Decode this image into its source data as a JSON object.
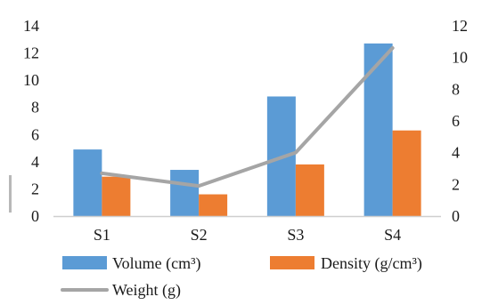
{
  "chart_data": {
    "type": "bar",
    "categories": [
      "S1",
      "S2",
      "S3",
      "S4"
    ],
    "series": [
      {
        "name": "Volume (cm³)",
        "type": "bar",
        "axis": "left",
        "color": "#5B9BD5",
        "values": [
          4.9,
          3.4,
          8.8,
          12.7
        ]
      },
      {
        "name": "Density (g/cm³)",
        "type": "bar",
        "axis": "left",
        "color": "#ED7D31",
        "values": [
          2.9,
          1.6,
          3.8,
          6.3
        ]
      },
      {
        "name": "Weight (g)",
        "type": "line",
        "axis": "right",
        "color": "#A5A5A5",
        "values": [
          2.7,
          1.9,
          4.0,
          10.6
        ]
      }
    ],
    "y_left": {
      "min": 0,
      "max": 14,
      "step": 2,
      "ticks": [
        "0",
        "2",
        "4",
        "6",
        "8",
        "10",
        "12",
        "14"
      ]
    },
    "y_right": {
      "min": 0,
      "max": 12,
      "step": 2,
      "ticks": [
        "0",
        "2",
        "4",
        "6",
        "8",
        "10",
        "12"
      ]
    },
    "grid": false,
    "legend_position": "bottom",
    "title": "",
    "xlabel": "",
    "ylabel": ""
  }
}
